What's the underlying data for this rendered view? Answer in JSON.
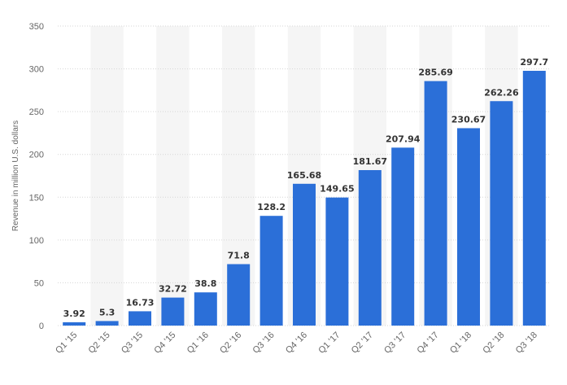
{
  "chart_data": {
    "type": "bar",
    "categories": [
      "Q1 '15",
      "Q2 '15",
      "Q3 '15",
      "Q4 '15",
      "Q1 '16",
      "Q2 '16",
      "Q3 '16",
      "Q4 '16",
      "Q1 '17",
      "Q2 '17",
      "Q3 '17",
      "Q4 '17",
      "Q1 '18",
      "Q2 '18",
      "Q3 '18"
    ],
    "values": [
      3.92,
      5.3,
      16.73,
      32.72,
      38.8,
      71.8,
      128.2,
      165.68,
      149.65,
      181.67,
      207.94,
      285.69,
      230.67,
      262.26,
      297.7
    ],
    "value_labels": [
      "3.92",
      "5.3",
      "16.73",
      "32.72",
      "38.8",
      "71.8",
      "128.2",
      "165.68",
      "149.65",
      "181.67",
      "207.94",
      "285.69",
      "230.67",
      "262.26",
      "297.7"
    ],
    "ylabel": "Revenue in million U.S. dollars",
    "xlabel": "",
    "ylim": [
      0,
      350
    ],
    "yticks": [
      0,
      50,
      100,
      150,
      200,
      250,
      300,
      350
    ],
    "grid": true,
    "alternating_column_shading": true
  },
  "colors": {
    "bar": "#2b6fd8",
    "grid": "#d6d6d6",
    "band": "#f5f5f5"
  }
}
